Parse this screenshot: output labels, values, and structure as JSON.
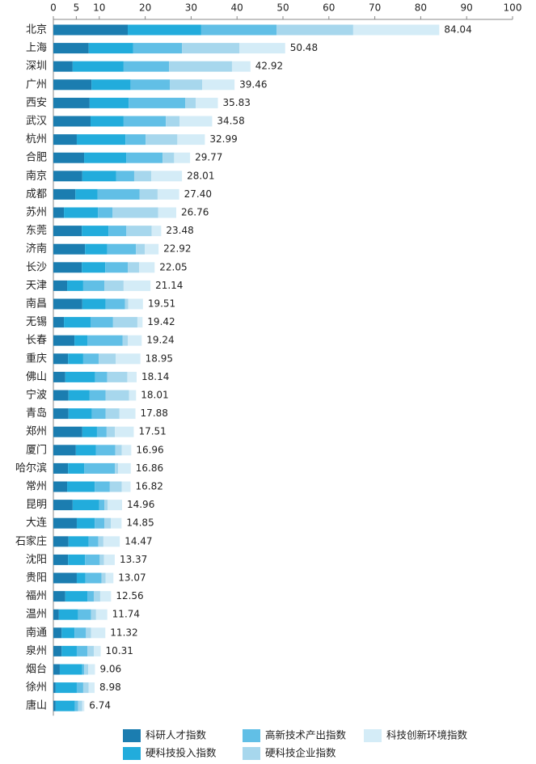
{
  "chart_data": {
    "type": "stacked-barh",
    "categories": [
      "北京",
      "上海",
      "深圳",
      "广州",
      "西安",
      "武汉",
      "杭州",
      "合肥",
      "南京",
      "成都",
      "苏州",
      "东莞",
      "济南",
      "长沙",
      "天津",
      "南昌",
      "无锡",
      "长春",
      "重庆",
      "佛山",
      "宁波",
      "青岛",
      "郑州",
      "厦门",
      "哈尔滨",
      "常州",
      "昆明",
      "大连",
      "石家庄",
      "沈阳",
      "贵阳",
      "福州",
      "温州",
      "南通",
      "泉州",
      "烟台",
      "徐州",
      "唐山"
    ],
    "series": [
      {
        "name": "科研人才指数",
        "color": "#1b7db0",
        "values": [
          16.2,
          7.7,
          4.2,
          8.3,
          7.9,
          8.1,
          5.1,
          6.7,
          6.3,
          4.8,
          2.3,
          6.2,
          6.9,
          6.2,
          3.0,
          6.3,
          2.3,
          4.6,
          3.2,
          2.6,
          3.3,
          3.3,
          6.3,
          4.9,
          3.2,
          3.0,
          4.2,
          5.1,
          3.3,
          3.2,
          5.1,
          2.6,
          1.2,
          1.8,
          1.8,
          1.4,
          0.5,
          0.5
        ]
      },
      {
        "name": "硬科技投入指数",
        "color": "#22acdc",
        "values": [
          16.0,
          9.7,
          11.1,
          8.5,
          8.5,
          7.2,
          10.6,
          9.2,
          7.4,
          4.8,
          7.4,
          5.8,
          4.8,
          5.1,
          3.5,
          5.1,
          5.8,
          2.8,
          3.3,
          6.5,
          4.6,
          5.1,
          3.2,
          4.4,
          3.5,
          6.0,
          5.8,
          3.9,
          4.4,
          3.7,
          1.9,
          4.8,
          4.2,
          2.8,
          3.3,
          4.9,
          4.6,
          4.2
        ]
      },
      {
        "name": "高新技术产出指数",
        "color": "#61bfe6",
        "values": [
          16.4,
          10.6,
          9.9,
          8.6,
          12.3,
          9.2,
          4.4,
          7.9,
          3.9,
          9.2,
          3.2,
          3.9,
          6.3,
          4.9,
          4.6,
          4.2,
          4.9,
          7.7,
          3.4,
          2.6,
          3.5,
          3.0,
          2.1,
          4.2,
          6.7,
          3.3,
          1.1,
          2.1,
          2.1,
          3.2,
          3.5,
          1.4,
          2.8,
          2.5,
          2.3,
          0.4,
          1.4,
          0.7
        ]
      },
      {
        "name": "硬科技企业指数",
        "color": "#a7d7ed",
        "values": [
          16.7,
          12.5,
          13.7,
          7.0,
          2.3,
          3.0,
          6.9,
          2.5,
          3.7,
          3.9,
          9.9,
          5.5,
          1.9,
          2.5,
          4.2,
          0.7,
          5.3,
          1.1,
          3.7,
          4.4,
          5.1,
          3.0,
          1.8,
          1.4,
          0.7,
          2.6,
          0.7,
          1.4,
          1.1,
          0.9,
          0.9,
          1.4,
          1.1,
          1.1,
          1.4,
          0.9,
          1.2,
          0.9
        ]
      },
      {
        "name": "科技创新环境指数",
        "color": "#d4ecf7",
        "values": [
          18.74,
          9.98,
          4.02,
          7.06,
          4.83,
          7.08,
          5.99,
          3.47,
          6.71,
          4.7,
          3.96,
          2.08,
          3.02,
          3.35,
          5.84,
          3.21,
          1.12,
          3.04,
          5.35,
          2.04,
          1.51,
          3.48,
          4.11,
          2.06,
          2.76,
          1.92,
          3.16,
          2.35,
          3.57,
          2.37,
          1.67,
          2.36,
          2.44,
          3.12,
          1.51,
          1.46,
          1.28,
          0.44
        ]
      }
    ],
    "totals": {
      "values": [
        84.04,
        50.48,
        42.92,
        39.46,
        35.83,
        34.58,
        32.99,
        29.77,
        28.01,
        27.4,
        26.76,
        23.48,
        22.92,
        22.05,
        21.14,
        19.51,
        19.42,
        19.24,
        18.95,
        18.14,
        18.01,
        17.88,
        17.51,
        16.96,
        16.86,
        16.82,
        14.96,
        14.85,
        14.47,
        13.37,
        13.07,
        12.56,
        11.74,
        11.32,
        10.31,
        9.06,
        8.98,
        6.74
      ],
      "value_labels": [
        "84.04",
        "50.48",
        "42.92",
        "39.46",
        "35.83",
        "34.58",
        "32.99",
        "29.77",
        "28.01",
        "27.40",
        "26.76",
        "23.48",
        "22.92",
        "22.05",
        "21.14",
        "19.51",
        "19.42",
        "19.24",
        "18.95",
        "18.14",
        "18.01",
        "17.88",
        "17.51",
        "16.96",
        "16.86",
        "16.82",
        "14.96",
        "14.85",
        "14.47",
        "13.37",
        "13.07",
        "12.56",
        "11.74",
        "11.32",
        "10.31",
        "9.06",
        "8.98",
        "6.74"
      ]
    },
    "xlim": [
      0,
      100
    ],
    "xticks": [
      0,
      5,
      10,
      20,
      30,
      40,
      50,
      60,
      70,
      80,
      90,
      100
    ]
  }
}
